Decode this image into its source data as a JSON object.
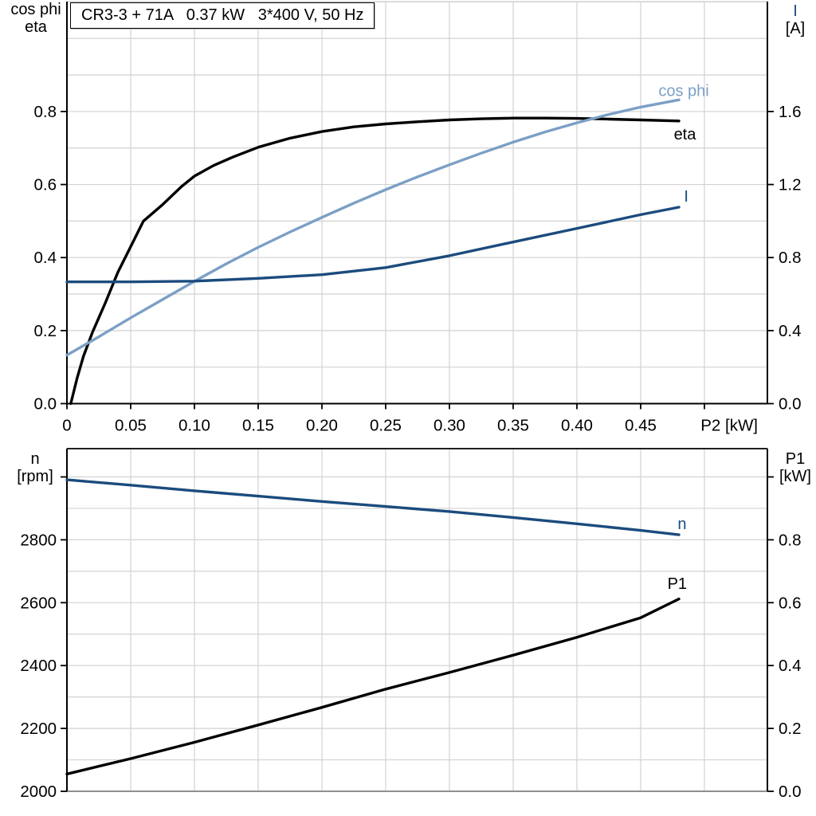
{
  "colors": {
    "black": "#000000",
    "light_blue": "#7C9FC6",
    "dark_blue": "#1B4B7E",
    "grid": "#D2D2D2",
    "gray_axis": "#8F8F8F",
    "background": "#FFFFFF"
  },
  "chart_data": [
    {
      "type": "line",
      "title": "CR3-3 + 71A   0.37 kW   3*400 V, 50 Hz",
      "xlabel": "P2 [kW]",
      "xlim": [
        0,
        0.5494
      ],
      "x_grid_step": 0.05,
      "x_tick_values": [
        0,
        0.05,
        0.1,
        0.15,
        0.2,
        0.25,
        0.3,
        0.35,
        0.4,
        0.45,
        0.5
      ],
      "x_tick_labels": [
        "0",
        "0.05",
        "0.10",
        "0.15",
        "0.20",
        "0.25",
        "0.30",
        "0.35",
        "0.40",
        "0.45",
        ""
      ],
      "left_axis": {
        "label_lines": [
          "cos phi",
          "eta"
        ],
        "ylim": [
          0,
          1.101
        ],
        "grid_step": 0.1,
        "tick_values": [
          0,
          0.2,
          0.4,
          0.6,
          0.8
        ],
        "tick_labels": [
          "0.0",
          "0.2",
          "0.4",
          "0.6",
          "0.8"
        ]
      },
      "right_axis": {
        "label_lines": [
          "I",
          "[A]"
        ],
        "ylim": [
          0,
          2.202
        ],
        "grid_step": 0.2,
        "tick_values": [
          0,
          0.4,
          0.8,
          1.2,
          1.6
        ],
        "tick_labels": [
          "0.0",
          "0.4",
          "0.8",
          "1.2",
          "1.6"
        ]
      },
      "series": [
        {
          "name": "eta",
          "axis": "left",
          "color": "#000000",
          "x": [
            0.003,
            0.008,
            0.013,
            0.02,
            0.025,
            0.03,
            0.04,
            0.05,
            0.06,
            0.075,
            0.09,
            0.1,
            0.115,
            0.13,
            0.15,
            0.175,
            0.2,
            0.225,
            0.25,
            0.275,
            0.3,
            0.325,
            0.35,
            0.375,
            0.4,
            0.425,
            0.45,
            0.48
          ],
          "y": [
            0,
            0.07,
            0.13,
            0.195,
            0.235,
            0.275,
            0.36,
            0.43,
            0.5,
            0.545,
            0.595,
            0.623,
            0.652,
            0.675,
            0.702,
            0.727,
            0.745,
            0.758,
            0.766,
            0.772,
            0.777,
            0.78,
            0.782,
            0.782,
            0.781,
            0.779,
            0.777,
            0.774
          ],
          "label": {
            "text": "eta",
            "x": 0.476,
            "y": 0.739,
            "anchor": "start"
          }
        },
        {
          "name": "cos phi",
          "axis": "left",
          "color": "#7C9FC6",
          "x": [
            0,
            0.025,
            0.05,
            0.075,
            0.1,
            0.125,
            0.15,
            0.175,
            0.2,
            0.225,
            0.25,
            0.275,
            0.3,
            0.325,
            0.35,
            0.375,
            0.4,
            0.425,
            0.45,
            0.48
          ],
          "y": [
            0.133,
            0.183,
            0.235,
            0.285,
            0.335,
            0.383,
            0.428,
            0.47,
            0.51,
            0.549,
            0.586,
            0.621,
            0.654,
            0.686,
            0.716,
            0.744,
            0.769,
            0.792,
            0.812,
            0.832
          ],
          "label": {
            "text": "cos phi",
            "x": 0.464,
            "y": 0.858,
            "anchor": "start"
          }
        },
        {
          "name": "I",
          "axis": "right",
          "color": "#1B4B7E",
          "x": [
            0,
            0.05,
            0.1,
            0.15,
            0.2,
            0.25,
            0.3,
            0.35,
            0.4,
            0.45,
            0.48
          ],
          "y": [
            0.667,
            0.667,
            0.671,
            0.686,
            0.706,
            0.745,
            0.81,
            0.885,
            0.96,
            1.035,
            1.076
          ],
          "label": {
            "text": "I",
            "x": 0.484,
            "y": 1.138,
            "anchor": "start"
          }
        }
      ]
    },
    {
      "type": "line",
      "xlim": [
        0,
        0.5494
      ],
      "x_grid_step": 0.05,
      "left_axis": {
        "label_lines": [
          "n",
          "[rpm]"
        ],
        "ylim": [
          2000,
          3090
        ],
        "grid_step": 100,
        "tick_values": [
          2000,
          2200,
          2400,
          2600,
          2800,
          3000
        ],
        "tick_labels": [
          "2000",
          "2200",
          "2400",
          "2600",
          "2800",
          ""
        ]
      },
      "right_axis": {
        "label_lines": [
          "P1",
          "[kW]"
        ],
        "ylim": [
          0,
          1.09
        ],
        "grid_step": 0.1,
        "tick_values": [
          0,
          0.2,
          0.4,
          0.6,
          0.8,
          1.0
        ],
        "tick_labels": [
          "0.0",
          "0.2",
          "0.4",
          "0.6",
          "0.8",
          ""
        ]
      },
      "series": [
        {
          "name": "n",
          "axis": "left",
          "color": "#1B4B7E",
          "x": [
            0,
            0.05,
            0.1,
            0.15,
            0.2,
            0.25,
            0.3,
            0.35,
            0.4,
            0.45,
            0.48
          ],
          "y": [
            2991,
            2974,
            2956,
            2939,
            2922,
            2906,
            2890,
            2871,
            2851,
            2830,
            2816
          ],
          "label": {
            "text": "n",
            "x": 0.479,
            "y": 2852,
            "anchor": "start"
          }
        },
        {
          "name": "P1",
          "axis": "right",
          "color": "#000000",
          "x": [
            0,
            0.05,
            0.1,
            0.15,
            0.2,
            0.25,
            0.3,
            0.35,
            0.4,
            0.45,
            0.48
          ],
          "y": [
            0.055,
            0.104,
            0.156,
            0.211,
            0.267,
            0.325,
            0.378,
            0.433,
            0.49,
            0.552,
            0.612
          ],
          "label": {
            "text": "P1",
            "x": 0.471,
            "y": 0.662,
            "anchor": "start"
          }
        }
      ]
    }
  ]
}
